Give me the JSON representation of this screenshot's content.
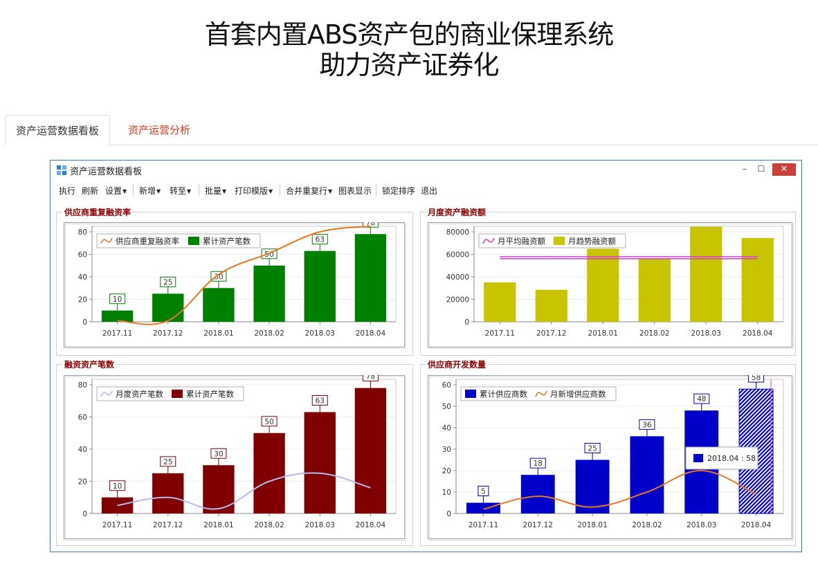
{
  "page": {
    "title_line1": "首套内置ABS资产包的商业保理系统",
    "title_line2": "助力资产证券化"
  },
  "tabs": [
    {
      "label": "资产运营数据看板",
      "active": true
    },
    {
      "label": "资产运营分析",
      "active": false
    }
  ],
  "window": {
    "title": "资产运营数据看板",
    "minimize_glyph": "–",
    "maximize_glyph": "☐",
    "close_glyph": "✕"
  },
  "toolbar": {
    "items": [
      {
        "id": "exec",
        "label": "执行"
      },
      {
        "id": "refresh",
        "label": "刷新"
      },
      {
        "id": "settings",
        "label": "设置",
        "dropdown": true
      },
      {
        "id": "new",
        "label": "新增",
        "dropdown": true
      },
      {
        "id": "goto",
        "label": "转至",
        "dropdown": true
      },
      {
        "id": "batch",
        "label": "批量",
        "dropdown": true
      },
      {
        "id": "print-template",
        "label": "打印模版",
        "dropdown": true
      },
      {
        "id": "merge-duplicate",
        "label": "合并重复行",
        "dropdown": true
      },
      {
        "id": "chart-display",
        "label": "图表显示"
      },
      {
        "id": "lock-sort",
        "label": "锁定排序"
      },
      {
        "id": "exit",
        "label": "退出"
      }
    ]
  },
  "colors": {
    "green": "#008000",
    "orange": "#e87722",
    "olive": "#c8c400",
    "magenta": "#d040d0",
    "maroon": "#800000",
    "lavender": "#b8b8f0",
    "blue": "#0000c8",
    "panel_title": "#8b0000"
  },
  "chart_data": [
    {
      "id": "repeat-financing-rate",
      "panel_title": "供应商重复融资率",
      "type": "bar",
      "categories": [
        "2017.11",
        "2017.12",
        "2018.01",
        "2018.02",
        "2018.03",
        "2018.04"
      ],
      "ylim": [
        0,
        80
      ],
      "yticks": [
        0,
        20,
        40,
        60,
        80
      ],
      "legend_order": [
        "line",
        "bar"
      ],
      "series": [
        {
          "name": "累计资产笔数",
          "kind": "bar",
          "color": "#008000",
          "values": [
            10,
            25,
            30,
            50,
            63,
            78
          ],
          "labels": true
        },
        {
          "name": "供应商重复融资率",
          "kind": "line",
          "color": "#e87722",
          "values": [
            1,
            1,
            42,
            61,
            80,
            85
          ]
        }
      ]
    },
    {
      "id": "monthly-financing",
      "panel_title": "月度资产融资额",
      "type": "bar",
      "categories": [
        "2017.11",
        "2017.12",
        "2018.01",
        "2018.02",
        "2018.03",
        "2018.04"
      ],
      "ylim": [
        0,
        80000
      ],
      "yticks": [
        0,
        20000,
        40000,
        60000,
        80000
      ],
      "legend_order": [
        "line",
        "bar"
      ],
      "series": [
        {
          "name": "月趋势融资额",
          "kind": "bar",
          "color": "#c8c400",
          "values": [
            35000,
            28500,
            65000,
            56000,
            84500,
            74500
          ]
        },
        {
          "name": "月平均融资额",
          "kind": "hline",
          "color": "#d040d0",
          "value": 57000
        }
      ]
    },
    {
      "id": "financed-asset-count",
      "panel_title": "融资资产笔数",
      "type": "bar",
      "categories": [
        "2017.11",
        "2017.12",
        "2018.01",
        "2018.02",
        "2018.03",
        "2018.04"
      ],
      "ylim": [
        0,
        80
      ],
      "yticks": [
        0,
        20,
        40,
        60,
        80
      ],
      "legend_order": [
        "line",
        "bar"
      ],
      "series": [
        {
          "name": "累计资产笔数",
          "kind": "bar",
          "color": "#800000",
          "values": [
            10,
            25,
            30,
            50,
            63,
            78
          ],
          "labels": true
        },
        {
          "name": "月度资产笔数",
          "kind": "line",
          "color": "#b8b8f0",
          "values": [
            5,
            10,
            3,
            20,
            25,
            16
          ]
        }
      ]
    },
    {
      "id": "supplier-growth",
      "panel_title": "供应商开发数量",
      "type": "bar",
      "categories": [
        "2017.11",
        "2017.12",
        "2018.01",
        "2018.02",
        "2018.03",
        "2018.04"
      ],
      "ylim": [
        0,
        60
      ],
      "yticks": [
        0,
        10,
        20,
        30,
        40,
        50,
        60
      ],
      "legend_order": [
        "bar",
        "line"
      ],
      "series": [
        {
          "name": "累计供应商数",
          "kind": "bar",
          "color": "#0000c8",
          "values": [
            5,
            18,
            25,
            36,
            48,
            58
          ],
          "labels": true,
          "hatched_last": true
        },
        {
          "name": "月新增供应商数",
          "kind": "line",
          "color": "#e87722",
          "values": [
            2,
            8,
            3,
            10,
            20,
            9
          ]
        }
      ],
      "tooltip": "2018.04 : 58"
    }
  ]
}
